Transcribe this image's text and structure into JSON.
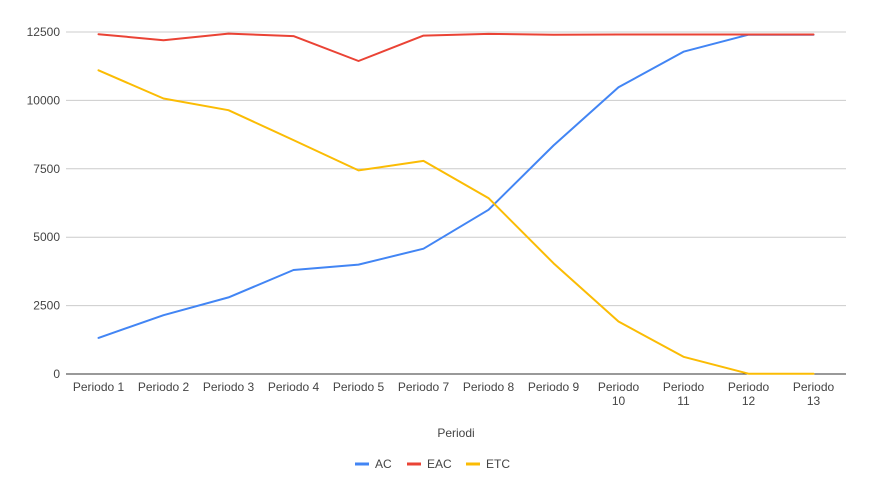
{
  "chart_data": {
    "type": "line",
    "title": "",
    "xlabel": "Periodi",
    "ylabel": "",
    "categories": [
      "Periodo 1",
      "Periodo 2",
      "Periodo 3",
      "Periodo 4",
      "Periodo 5",
      "Periodo 7",
      "Periodo 8",
      "Periodo 9",
      "Periodo 10",
      "Periodo 11",
      "Periodo 12",
      "Periodo 13"
    ],
    "ylim": [
      0,
      12500
    ],
    "yticks": [
      0,
      2500,
      5000,
      7500,
      10000,
      12500
    ],
    "ytick_labels": [
      "0",
      "2500",
      "5000",
      "7500",
      "10000",
      "12500"
    ],
    "grid": true,
    "legend_position": "bottom",
    "series": [
      {
        "name": "AC",
        "color": "#4285f4",
        "values": [
          1320,
          2150,
          2800,
          3800,
          4000,
          4580,
          6000,
          8350,
          10480,
          11780,
          12400,
          12400
        ]
      },
      {
        "name": "EAC",
        "color": "#ea4335",
        "values": [
          12420,
          12200,
          12440,
          12350,
          11440,
          12370,
          12430,
          12400,
          12410,
          12410,
          12410,
          12410
        ]
      },
      {
        "name": "ETC",
        "color": "#fbbc04",
        "values": [
          11100,
          10070,
          9640,
          8550,
          7440,
          7790,
          6430,
          4050,
          1920,
          630,
          10,
          10
        ]
      }
    ]
  }
}
